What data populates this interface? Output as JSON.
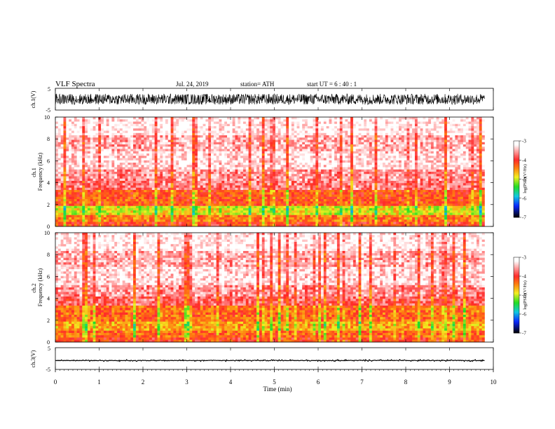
{
  "header": {
    "title": "VLF  Spectra",
    "date": "Jul.  24,  2019",
    "station": "station= ATH",
    "start_ut": "start  UT  =    6  : 40 : 1"
  },
  "colors": {
    "white": "#ffffff",
    "red": "#ff2a2a",
    "orange": "#ff7a10",
    "yellow": "#f2ee20",
    "green": "#22dd22",
    "cyan": "#10c8e0",
    "blue": "#0a28ff",
    "black": "#000000"
  },
  "chart_data": [
    {
      "type": "line",
      "name": "channel-1-waveform",
      "ylabel": "ch.1(V)",
      "ylim": [
        -5,
        5
      ],
      "yticks": [
        "5",
        "-5"
      ],
      "xlim": [
        0,
        10
      ],
      "data_extent_min": 9.8,
      "amplitude_band": [
        -2.5,
        2.5
      ]
    },
    {
      "type": "heatmap",
      "name": "channel-1-spectrogram",
      "ylabel": "ch.1\nFrequency  (kHz)",
      "ylim": [
        0,
        10
      ],
      "yticks": [
        "0",
        "2",
        "4",
        "6",
        "8",
        "10"
      ],
      "xlim": [
        0,
        10
      ],
      "data_extent_min": 9.8,
      "colorbar": {
        "label": "log(PSD)(V²/Hz)",
        "ticks": [
          "-3",
          "-4",
          "-5",
          "-6",
          "-7"
        ],
        "range": [
          -7,
          -3
        ]
      },
      "bands": [
        {
          "from_khz": 0.0,
          "to_khz": 0.5,
          "level": -4.1
        },
        {
          "from_khz": 0.5,
          "to_khz": 1.0,
          "level": -4.4
        },
        {
          "from_khz": 1.0,
          "to_khz": 1.8,
          "level": -4.9
        },
        {
          "from_khz": 1.8,
          "to_khz": 3.4,
          "level": -4.2
        },
        {
          "from_khz": 3.4,
          "to_khz": 4.2,
          "level": -3.7
        },
        {
          "from_khz": 4.2,
          "to_khz": 5.2,
          "level": -3.6
        },
        {
          "from_khz": 5.2,
          "to_khz": 6.8,
          "level": -3.3
        },
        {
          "from_khz": 6.8,
          "to_khz": 8.3,
          "level": -3.5
        },
        {
          "from_khz": 8.3,
          "to_khz": 10.0,
          "level": -3.2
        }
      ]
    },
    {
      "type": "heatmap",
      "name": "channel-2-spectrogram",
      "ylabel": "ch.2\nFrequency  (kHz)",
      "ylim": [
        0,
        10
      ],
      "yticks": [
        "0",
        "2",
        "4",
        "6",
        "8",
        "10"
      ],
      "xlim": [
        0,
        10
      ],
      "data_extent_min": 9.8,
      "colorbar": {
        "label": "log(PSD)(V²/Hz)",
        "ticks": [
          "-3",
          "-4",
          "-5",
          "-6",
          "-7"
        ],
        "range": [
          -7,
          -3
        ]
      },
      "bands": [
        {
          "from_khz": 0.0,
          "to_khz": 0.5,
          "level": -4.1
        },
        {
          "from_khz": 0.5,
          "to_khz": 1.0,
          "level": -4.3
        },
        {
          "from_khz": 1.0,
          "to_khz": 1.8,
          "level": -4.6
        },
        {
          "from_khz": 1.8,
          "to_khz": 3.4,
          "level": -4.3
        },
        {
          "from_khz": 3.4,
          "to_khz": 4.2,
          "level": -3.8
        },
        {
          "from_khz": 4.2,
          "to_khz": 5.2,
          "level": -3.6
        },
        {
          "from_khz": 5.2,
          "to_khz": 6.8,
          "level": -3.3
        },
        {
          "from_khz": 6.8,
          "to_khz": 8.3,
          "level": -3.5
        },
        {
          "from_khz": 8.3,
          "to_khz": 10.0,
          "level": -3.2
        }
      ]
    },
    {
      "type": "line",
      "name": "channel-3-waveform",
      "ylabel": "ch.3(V)",
      "ylim": [
        -5,
        5
      ],
      "yticks": [
        "5",
        "-5"
      ],
      "xlim": [
        0,
        10
      ],
      "data_extent_min": 9.8,
      "baseline_v": -0.9,
      "amplitude_band": [
        -1.2,
        -0.4
      ]
    }
  ],
  "x_axis": {
    "label": "Time  (min)",
    "ticks": [
      "0",
      "1",
      "2",
      "3",
      "4",
      "5",
      "6",
      "7",
      "8",
      "9",
      "10"
    ]
  }
}
